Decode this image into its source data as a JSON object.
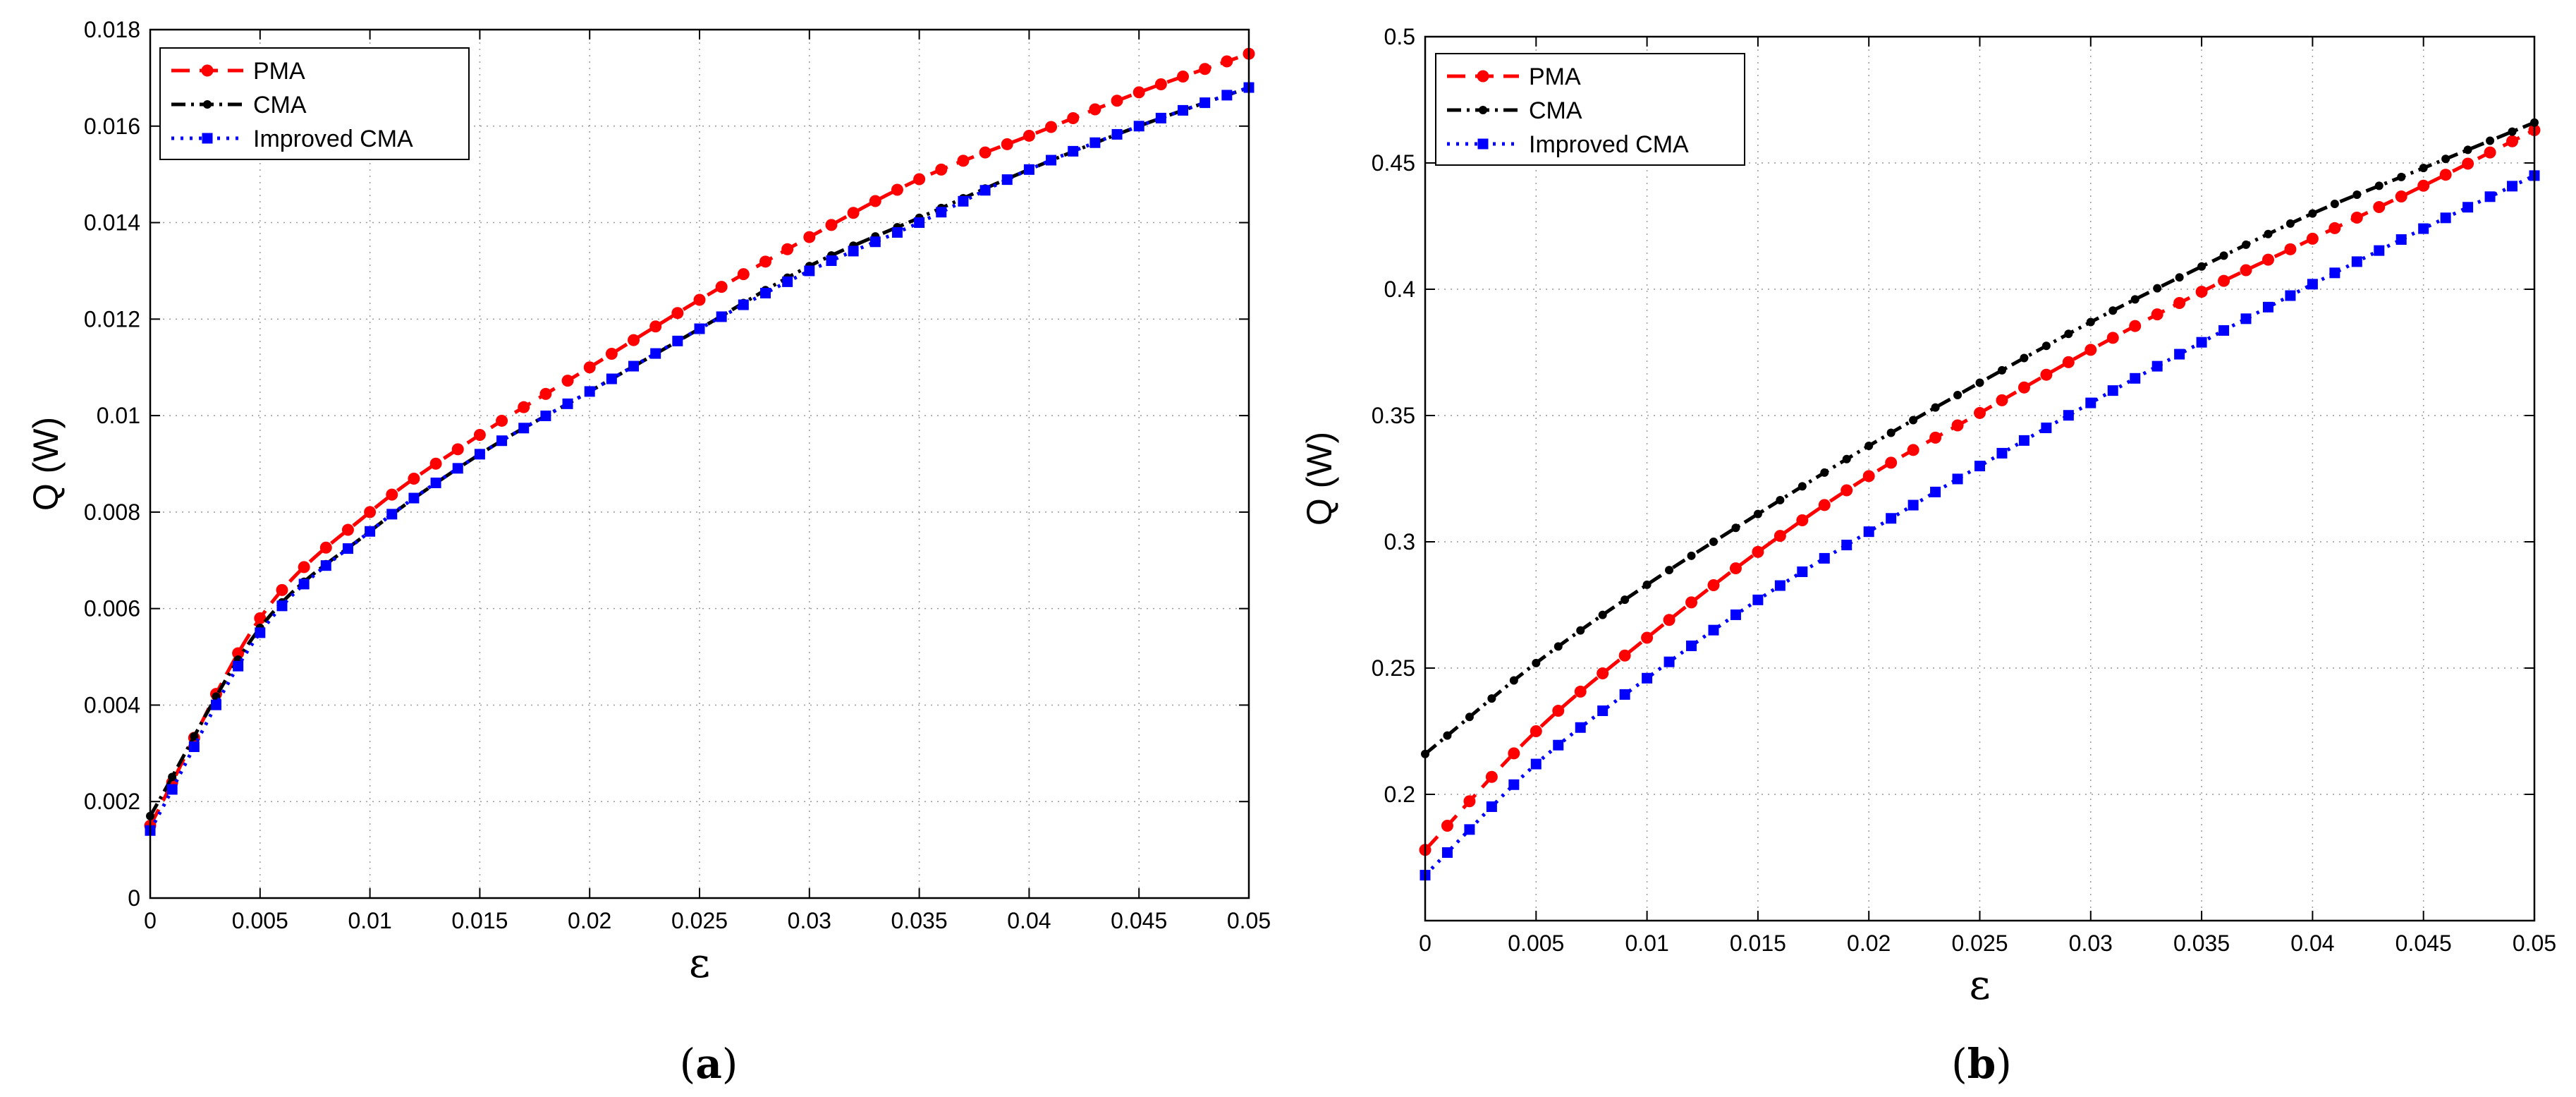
{
  "figure": {
    "panel_a_label": {
      "open": "(",
      "letter": "a",
      "close": ")"
    },
    "panel_b_label": {
      "open": "(",
      "letter": "b",
      "close": ")"
    }
  },
  "colors": {
    "PMA": "#ff0000",
    "CMA": "#000000",
    "Improved CMA": "#0000ff"
  },
  "chart_data": [
    {
      "id": "a",
      "type": "line",
      "title": "",
      "xlabel": "ε",
      "ylabel": "Q (W)",
      "xlim": [
        0,
        0.05
      ],
      "ylim": [
        0,
        0.018
      ],
      "grid": true,
      "legend_position": "top-left",
      "xticks": [
        0,
        0.005,
        0.01,
        0.015,
        0.02,
        0.025,
        0.03,
        0.035,
        0.04,
        0.045,
        0.05
      ],
      "xtick_labels": [
        "0",
        "0.005",
        "0.01",
        "0.015",
        "0.02",
        "0.025",
        "0.03",
        "0.035",
        "0.04",
        "0.045",
        "0.05"
      ],
      "yticks": [
        0,
        0.002,
        0.004,
        0.006,
        0.008,
        0.01,
        0.012,
        0.014,
        0.016,
        0.018
      ],
      "ytick_labels": [
        "0",
        "0.002",
        "0.004",
        "0.006",
        "0.008",
        "0.01",
        "0.012",
        "0.014",
        "0.016",
        "0.018"
      ],
      "x": [
        0,
        0.005,
        0.01,
        0.015,
        0.02,
        0.025,
        0.03,
        0.035,
        0.04,
        0.045,
        0.05
      ],
      "series": [
        {
          "name": "PMA",
          "style": "dashed-circle",
          "values": [
            0.0015,
            0.0058,
            0.008,
            0.0096,
            0.011,
            0.0124,
            0.0137,
            0.0149,
            0.0158,
            0.0167,
            0.0175
          ]
        },
        {
          "name": "CMA",
          "style": "dashdot-dot",
          "values": [
            0.0017,
            0.0056,
            0.0076,
            0.0092,
            0.0105,
            0.0118,
            0.0131,
            0.0141,
            0.0151,
            0.016,
            0.0168
          ]
        },
        {
          "name": "Improved CMA",
          "style": "dotted-square",
          "values": [
            0.0014,
            0.0055,
            0.0076,
            0.0092,
            0.0105,
            0.0118,
            0.013,
            0.014,
            0.0151,
            0.016,
            0.0168
          ]
        }
      ]
    },
    {
      "id": "b",
      "type": "line",
      "title": "",
      "xlabel": "ε",
      "ylabel": "Q (W)",
      "xlim": [
        0,
        0.05
      ],
      "ylim": [
        0.15,
        0.5
      ],
      "grid": true,
      "legend_position": "top-left",
      "xticks": [
        0,
        0.005,
        0.01,
        0.015,
        0.02,
        0.025,
        0.03,
        0.035,
        0.04,
        0.045,
        0.05
      ],
      "xtick_labels": [
        "0",
        "0.005",
        "0.01",
        "0.015",
        "0.02",
        "0.025",
        "0.03",
        "0.035",
        "0.04",
        "0.045",
        "0.05"
      ],
      "yticks": [
        0.2,
        0.25,
        0.3,
        0.35,
        0.4,
        0.45,
        0.5
      ],
      "ytick_labels": [
        "0.2",
        "0.25",
        "0.3",
        "0.35",
        "0.4",
        "0.45",
        "0.5"
      ],
      "x": [
        0,
        0.005,
        0.01,
        0.015,
        0.02,
        0.025,
        0.03,
        0.035,
        0.04,
        0.045,
        0.05
      ],
      "series": [
        {
          "name": "PMA",
          "style": "dashed-circle",
          "values": [
            0.178,
            0.225,
            0.262,
            0.296,
            0.326,
            0.351,
            0.376,
            0.399,
            0.42,
            0.441,
            0.463
          ]
        },
        {
          "name": "CMA",
          "style": "dashdot-dot",
          "values": [
            0.216,
            0.252,
            0.283,
            0.311,
            0.338,
            0.363,
            0.387,
            0.409,
            0.43,
            0.448,
            0.466
          ]
        },
        {
          "name": "Improved CMA",
          "style": "dotted-square",
          "values": [
            0.168,
            0.212,
            0.246,
            0.277,
            0.304,
            0.33,
            0.355,
            0.379,
            0.402,
            0.424,
            0.445
          ]
        }
      ]
    }
  ]
}
